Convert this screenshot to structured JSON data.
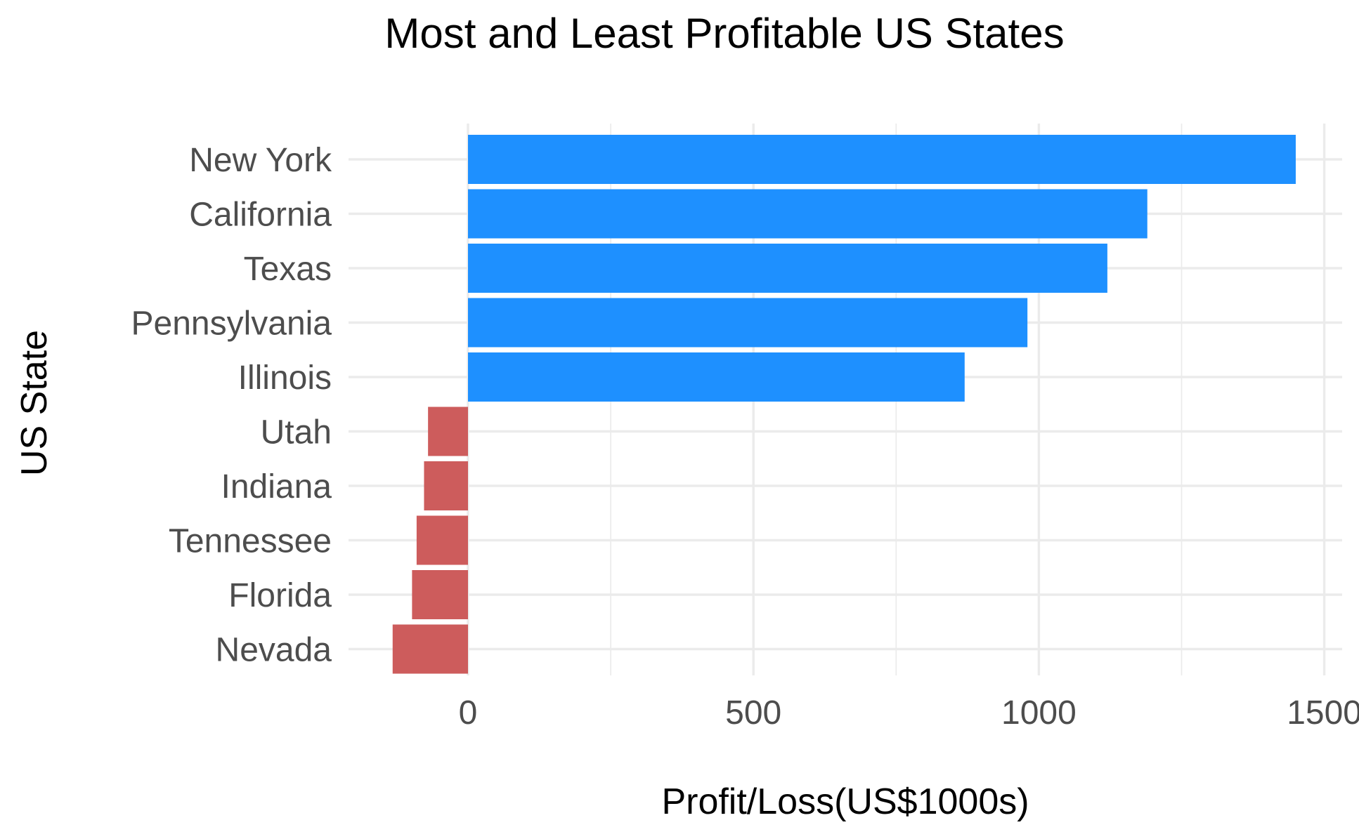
{
  "chart_data": {
    "type": "bar",
    "orientation": "horizontal",
    "title": "Most and Least Profitable US States",
    "xlabel": "Profit/Loss(US$1000s)",
    "ylabel": "US State",
    "categories": [
      "New York",
      "California",
      "Texas",
      "Pennsylvania",
      "Illinois",
      "Utah",
      "Indiana",
      "Tennessee",
      "Florida",
      "Nevada"
    ],
    "values": [
      1450,
      1190,
      1120,
      980,
      870,
      -70,
      -77,
      -90,
      -98,
      -132
    ],
    "xlim": [
      -210,
      1530
    ],
    "xticks": [
      0,
      500,
      1000,
      1500
    ],
    "tick_labels": [
      "0",
      "500",
      "1000",
      "1500"
    ],
    "grid": true,
    "legend": "none",
    "colors": {
      "positive": "#1e90ff",
      "negative": "#cd5c5c"
    }
  }
}
